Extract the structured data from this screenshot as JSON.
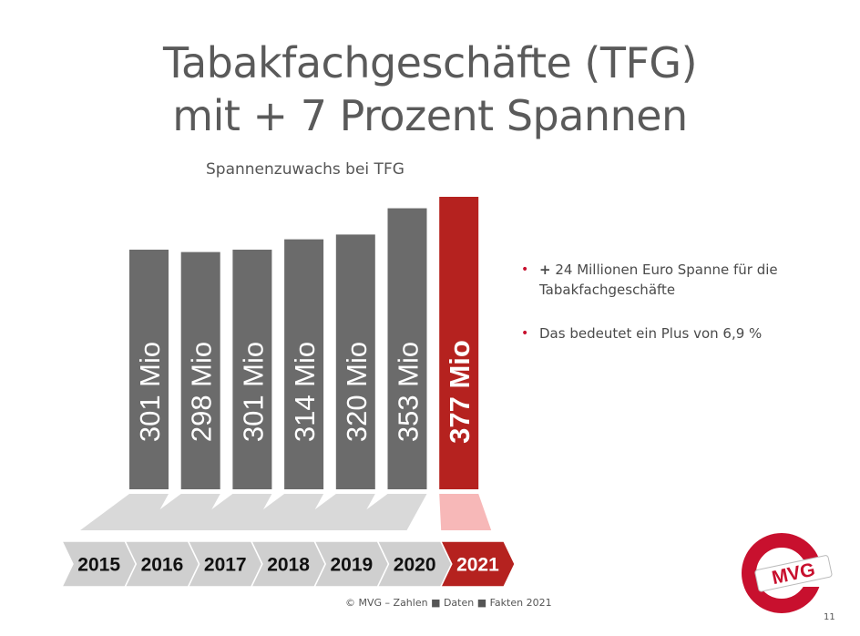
{
  "title_line1": "Tabakfachgeschäfte (TFG)",
  "title_line2": "mit + 7 Prozent Spannen",
  "bullets": [
    {
      "strong": "+",
      "text": " 24 Millionen Euro Spanne für die Tabakfachgeschäfte"
    },
    {
      "strong": "",
      "text": "Das bedeutet ein Plus von 6,9 %"
    }
  ],
  "footer": "© MVG – Zahlen ■ Daten ■ Fakten 2021",
  "page_number": "11",
  "logo_text": "MVG",
  "colors": {
    "bar": "#6b6b6b",
    "highlight": "#b5221f",
    "arrow": "#cfcfcf",
    "arrow_highlight": "#b5221f",
    "base": "#d9d9d9",
    "base_highlight": "#f7b8b8",
    "accent": "#c8102e"
  },
  "chart_data": {
    "type": "bar",
    "title": "Spannenzuwachs bei TFG",
    "categories": [
      "2015",
      "2016",
      "2017",
      "2018",
      "2019",
      "2020",
      "2021"
    ],
    "values": [
      301,
      298,
      301,
      314,
      320,
      353,
      377
    ],
    "labels": [
      "301 Mio",
      "298 Mio",
      "301 Mio",
      "314 Mio",
      "320 Mio",
      "353 Mio",
      "377 Mio"
    ],
    "highlight_index": 6,
    "xlabel": "",
    "ylabel": ""
  }
}
